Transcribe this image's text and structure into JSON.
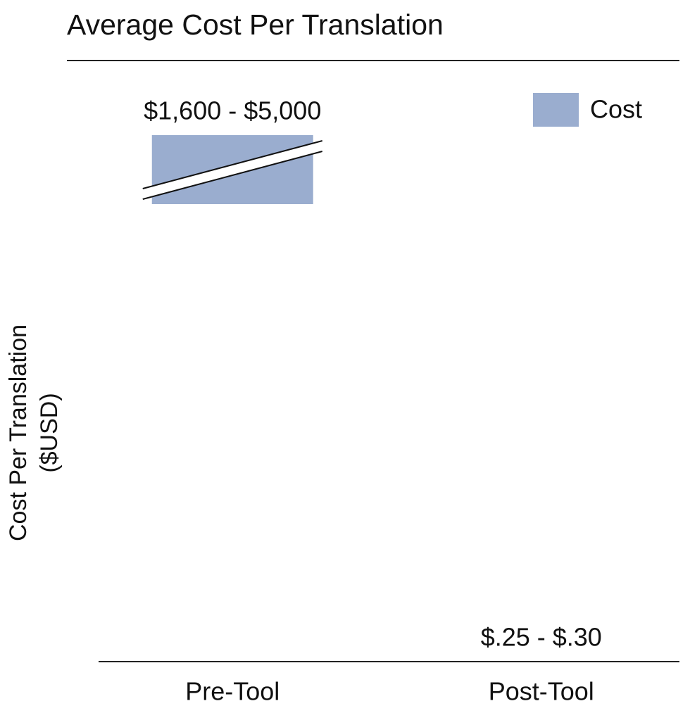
{
  "chart_data": {
    "type": "bar",
    "title": "Average Cost Per Translation",
    "y_label": [
      "Cost Per Translation",
      "($USD)"
    ],
    "categories": [
      "Pre-Tool",
      "Post-Tool"
    ],
    "series": [
      {
        "name": "Cost",
        "color": "#9aadcf",
        "values": [
          [
            1600,
            5000
          ],
          [
            0.25,
            0.3
          ]
        ],
        "value_labels": [
          "$1,600 - $5,000",
          "$.25 - $.30"
        ]
      }
    ],
    "axis_break": true,
    "legend": "top-right"
  }
}
